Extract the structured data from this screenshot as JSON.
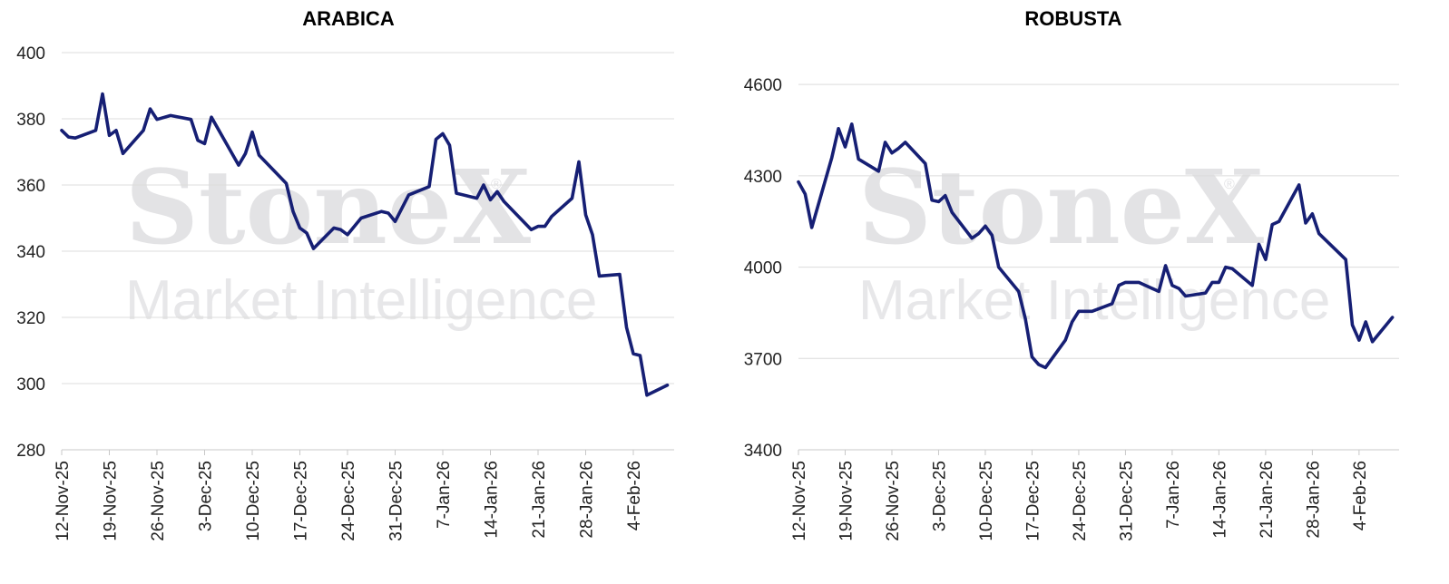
{
  "watermark": {
    "brand": "StoneX",
    "registered": "®",
    "tagline": "Market Intelligence"
  },
  "chart_data": [
    {
      "type": "line",
      "title": "ARABICA",
      "xlabel": "",
      "ylabel": "",
      "ylim": [
        280,
        400
      ],
      "yticks": [
        280,
        300,
        320,
        340,
        360,
        380,
        400
      ],
      "x_range": [
        "2025-11-12",
        "2026-02-10"
      ],
      "xticks": [
        {
          "date": "2025-11-12",
          "label": "12-Nov-25"
        },
        {
          "date": "2025-11-19",
          "label": "19-Nov-25"
        },
        {
          "date": "2025-11-26",
          "label": "26-Nov-25"
        },
        {
          "date": "2025-12-03",
          "label": "3-Dec-25"
        },
        {
          "date": "2025-12-10",
          "label": "10-Dec-25"
        },
        {
          "date": "2025-12-17",
          "label": "17-Dec-25"
        },
        {
          "date": "2025-12-24",
          "label": "24-Dec-25"
        },
        {
          "date": "2025-12-31",
          "label": "31-Dec-25"
        },
        {
          "date": "2026-01-07",
          "label": "7-Jan-26"
        },
        {
          "date": "2026-01-14",
          "label": "14-Jan-26"
        },
        {
          "date": "2026-01-21",
          "label": "21-Jan-26"
        },
        {
          "date": "2026-01-28",
          "label": "28-Jan-26"
        },
        {
          "date": "2026-02-04",
          "label": "4-Feb-26"
        }
      ],
      "grid": true,
      "line_color": "#161f74",
      "series": [
        {
          "x": [
            "2025-11-12",
            "2025-11-13",
            "2025-11-14",
            "2025-11-17",
            "2025-11-18",
            "2025-11-19",
            "2025-11-20",
            "2025-11-21",
            "2025-11-24",
            "2025-11-25",
            "2025-11-26",
            "2025-11-28",
            "2025-12-01",
            "2025-12-02",
            "2025-12-03",
            "2025-12-04",
            "2025-12-08",
            "2025-12-09",
            "2025-12-10",
            "2025-12-11",
            "2025-12-15",
            "2025-12-16",
            "2025-12-17",
            "2025-12-18",
            "2025-12-19",
            "2025-12-22",
            "2025-12-23",
            "2025-12-24",
            "2025-12-26",
            "2025-12-29",
            "2025-12-30",
            "2025-12-31",
            "2026-01-02",
            "2026-01-05",
            "2026-01-06",
            "2026-01-07",
            "2026-01-08",
            "2026-01-09",
            "2026-01-12",
            "2026-01-13",
            "2026-01-14",
            "2026-01-15",
            "2026-01-16",
            "2026-01-20",
            "2026-01-21",
            "2026-01-22",
            "2026-01-23",
            "2026-01-26",
            "2026-01-27",
            "2026-01-28",
            "2026-01-29",
            "2026-01-30",
            "2026-02-02",
            "2026-02-03",
            "2026-02-04",
            "2026-02-05",
            "2026-02-06",
            "2026-02-09"
          ],
          "values": [
            376.5,
            374.5,
            374.2,
            376.5,
            387.5,
            375,
            376.5,
            369.5,
            376.5,
            383,
            379.8,
            381,
            379.8,
            373.5,
            372.5,
            380.5,
            366,
            369.5,
            376,
            369,
            360.5,
            352,
            347,
            345.5,
            340.8,
            347,
            346.5,
            345,
            350,
            352,
            351.5,
            349,
            357,
            359.5,
            373.8,
            375.5,
            372,
            357.5,
            356,
            360,
            355.5,
            358,
            355,
            346.5,
            347.5,
            347.5,
            350.5,
            356,
            367,
            351,
            345,
            332.5,
            333,
            317,
            309,
            308.5,
            296.5,
            299.5
          ]
        }
      ]
    },
    {
      "type": "line",
      "title": "ROBUSTA",
      "xlabel": "",
      "ylabel": "",
      "ylim": [
        3400,
        4800
      ],
      "yticks": [
        3400,
        3700,
        4000,
        4300,
        4600
      ],
      "x_range": [
        "2025-11-12",
        "2026-02-10"
      ],
      "xticks": [
        {
          "date": "2025-11-12",
          "label": "12-Nov-25"
        },
        {
          "date": "2025-11-19",
          "label": "19-Nov-25"
        },
        {
          "date": "2025-11-26",
          "label": "26-Nov-25"
        },
        {
          "date": "2025-12-03",
          "label": "3-Dec-25"
        },
        {
          "date": "2025-12-10",
          "label": "10-Dec-25"
        },
        {
          "date": "2025-12-17",
          "label": "17-Dec-25"
        },
        {
          "date": "2025-12-24",
          "label": "24-Dec-25"
        },
        {
          "date": "2025-12-31",
          "label": "31-Dec-25"
        },
        {
          "date": "2026-01-07",
          "label": "7-Jan-26"
        },
        {
          "date": "2026-01-14",
          "label": "14-Jan-26"
        },
        {
          "date": "2026-01-21",
          "label": "21-Jan-26"
        },
        {
          "date": "2026-01-28",
          "label": "28-Jan-26"
        },
        {
          "date": "2026-02-04",
          "label": "4-Feb-26"
        }
      ],
      "grid": true,
      "line_color": "#161f74",
      "series": [
        {
          "x": [
            "2025-11-12",
            "2025-11-13",
            "2025-11-14",
            "2025-11-17",
            "2025-11-18",
            "2025-11-19",
            "2025-11-20",
            "2025-11-21",
            "2025-11-24",
            "2025-11-25",
            "2025-11-26",
            "2025-11-27",
            "2025-11-28",
            "2025-12-01",
            "2025-12-02",
            "2025-12-03",
            "2025-12-04",
            "2025-12-05",
            "2025-12-08",
            "2025-12-09",
            "2025-12-10",
            "2025-12-11",
            "2025-12-12",
            "2025-12-15",
            "2025-12-16",
            "2025-12-17",
            "2025-12-18",
            "2025-12-19",
            "2025-12-22",
            "2025-12-23",
            "2025-12-24",
            "2025-12-26",
            "2025-12-29",
            "2025-12-30",
            "2025-12-31",
            "2026-01-02",
            "2026-01-05",
            "2026-01-06",
            "2026-01-07",
            "2026-01-08",
            "2026-01-09",
            "2026-01-12",
            "2026-01-13",
            "2026-01-14",
            "2026-01-15",
            "2026-01-16",
            "2026-01-19",
            "2026-01-20",
            "2026-01-21",
            "2026-01-22",
            "2026-01-23",
            "2026-01-26",
            "2026-01-27",
            "2026-01-28",
            "2026-01-29",
            "2026-02-02",
            "2026-02-03",
            "2026-02-04",
            "2026-02-05",
            "2026-02-06",
            "2026-02-09"
          ],
          "values": [
            4280,
            4240,
            4130,
            4360,
            4455,
            4395,
            4470,
            4355,
            4315,
            4410,
            4375,
            4390,
            4410,
            4340,
            4220,
            4215,
            4235,
            4180,
            4095,
            4110,
            4135,
            4105,
            4000,
            3920,
            3830,
            3705,
            3680,
            3670,
            3760,
            3820,
            3855,
            3855,
            3880,
            3940,
            3950,
            3950,
            3920,
            4005,
            3940,
            3930,
            3905,
            3915,
            3950,
            3950,
            4000,
            3995,
            3940,
            4075,
            4025,
            4140,
            4150,
            4270,
            4145,
            4175,
            4110,
            4025,
            3810,
            3760,
            3820,
            3755,
            3835
          ]
        }
      ]
    }
  ]
}
